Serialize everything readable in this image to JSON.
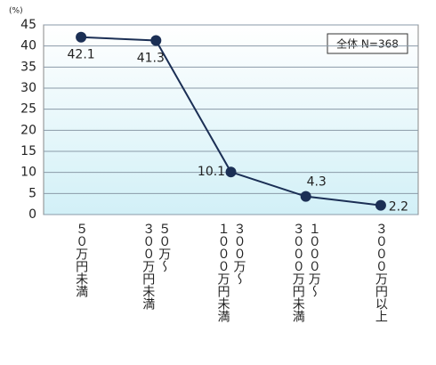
{
  "chart_data": {
    "type": "line",
    "y_unit_label": "(%)",
    "annotation": "全体 N=368",
    "categories": [
      "５０万円未満",
      "５０万〜\n３００万円未満",
      "３００万〜\n１０００万円未満",
      "１０００万〜\n３０００万円未満",
      "３０００万円以上"
    ],
    "series": [
      {
        "name": "全体",
        "color": "#1b2f55",
        "values": [
          42.1,
          41.3,
          10.1,
          4.3,
          2.2
        ]
      }
    ],
    "ylim": [
      0,
      45
    ],
    "yticks": [
      0,
      5,
      10,
      15,
      20,
      25,
      30,
      35,
      40,
      45
    ],
    "grid": true
  }
}
